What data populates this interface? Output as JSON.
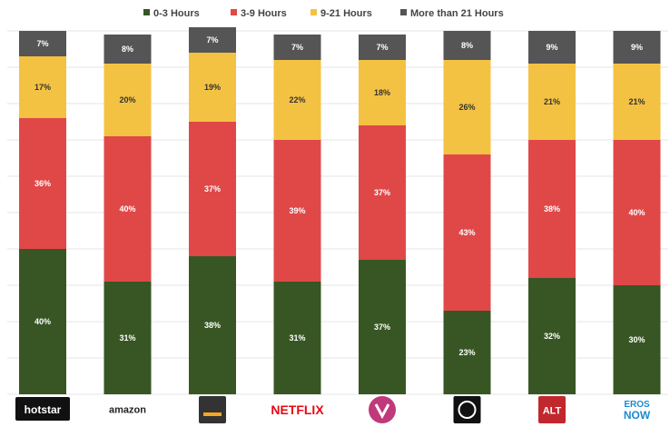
{
  "chart_data": {
    "type": "bar",
    "stacked": true,
    "categories": [
      "hotstar",
      "amazon",
      "SonyLIV",
      "NETFLIX",
      "voot",
      "ZEE5",
      "ALT Balaji",
      "EROS NOW"
    ],
    "series": [
      {
        "name": "0-3 Hours",
        "color": "#375623",
        "values": [
          40,
          31,
          38,
          31,
          37,
          23,
          32,
          30
        ]
      },
      {
        "name": "3-9 Hours",
        "color": "#e04848",
        "values": [
          36,
          40,
          37,
          39,
          37,
          43,
          38,
          40
        ]
      },
      {
        "name": "9-21 Hours",
        "color": "#f4c242",
        "values": [
          17,
          20,
          19,
          22,
          18,
          26,
          21,
          21
        ]
      },
      {
        "name": "More than 21 Hours",
        "color": "#555555",
        "values": [
          7,
          8,
          7,
          7,
          7,
          8,
          9,
          9
        ]
      }
    ],
    "ylim": [
      0,
      100
    ],
    "legend_position": "top",
    "grid": true
  },
  "logos": [
    {
      "text": "hotstar",
      "color": "#ffffff",
      "bg": "#111111",
      "icon": "hotstar-logo"
    },
    {
      "text": "amazon",
      "color": "#222222",
      "bg": "#ffffff",
      "icon": "amazon-prime-logo"
    },
    {
      "text": "",
      "color": "#ffffff",
      "bg": "#333333",
      "icon": "sonyliv-logo"
    },
    {
      "text": "NETFLIX",
      "color": "#e50914",
      "bg": "#ffffff",
      "icon": "netflix-logo"
    },
    {
      "text": "",
      "color": "#ffffff",
      "bg": "#c0397a",
      "icon": "voot-logo"
    },
    {
      "text": "",
      "color": "#ffffff",
      "bg": "#111111",
      "icon": "zee5-logo"
    },
    {
      "text": "ALT",
      "color": "#ffffff",
      "bg": "#c0282d",
      "icon": "altbalaji-logo"
    },
    {
      "text": "EROS NOW",
      "color": "#1e8bd0",
      "bg": "#ffffff",
      "icon": "erosnow-logo"
    }
  ]
}
